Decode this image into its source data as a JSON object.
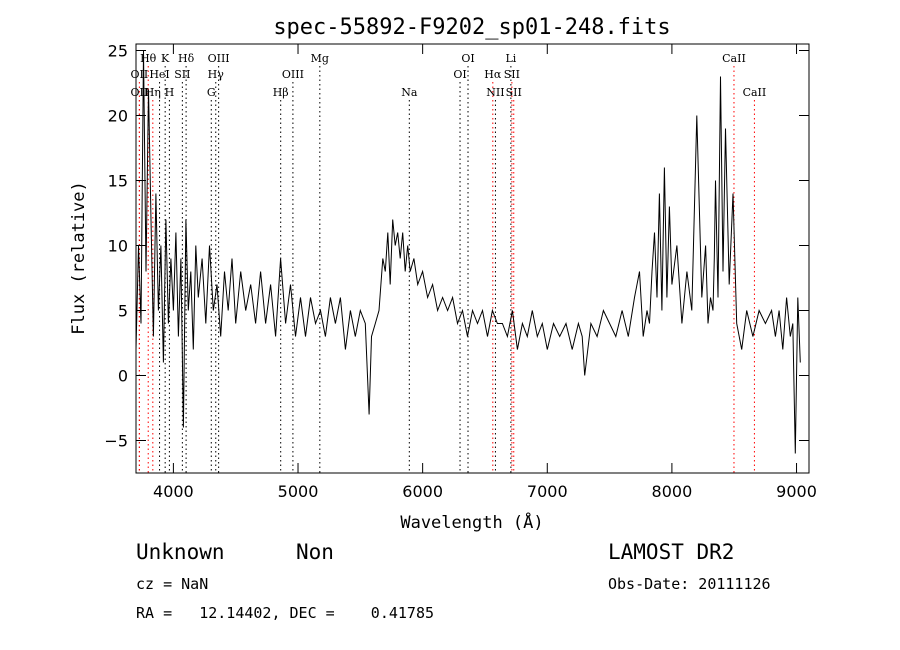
{
  "chart_data": {
    "type": "line",
    "title": "spec-55892-F9202_sp01-248.fits",
    "xlabel": "Wavelength (Å)",
    "ylabel": "Flux (relative)",
    "xlim": [
      3700,
      9100
    ],
    "ylim": [
      -7.5,
      25.5
    ],
    "xticks": [
      4000,
      5000,
      6000,
      7000,
      8000,
      9000
    ],
    "yticks": [
      -5,
      0,
      5,
      10,
      15,
      20,
      25
    ],
    "grid": false,
    "series": [
      {
        "name": "spectrum",
        "x": [
          3700,
          3720,
          3740,
          3760,
          3780,
          3800,
          3820,
          3840,
          3860,
          3880,
          3900,
          3920,
          3940,
          3960,
          3980,
          4000,
          4020,
          4040,
          4060,
          4080,
          4100,
          4120,
          4140,
          4160,
          4180,
          4200,
          4230,
          4260,
          4290,
          4320,
          4350,
          4380,
          4410,
          4440,
          4470,
          4500,
          4540,
          4580,
          4620,
          4660,
          4700,
          4740,
          4780,
          4820,
          4860,
          4900,
          4940,
          4980,
          5020,
          5060,
          5100,
          5140,
          5180,
          5220,
          5260,
          5300,
          5340,
          5380,
          5420,
          5460,
          5500,
          5540,
          5570,
          5590,
          5620,
          5650,
          5680,
          5700,
          5720,
          5740,
          5760,
          5780,
          5800,
          5820,
          5840,
          5860,
          5880,
          5900,
          5930,
          5960,
          6000,
          6040,
          6080,
          6120,
          6160,
          6200,
          6240,
          6280,
          6320,
          6360,
          6400,
          6440,
          6480,
          6520,
          6560,
          6600,
          6640,
          6680,
          6720,
          6760,
          6800,
          6840,
          6880,
          6920,
          6960,
          7000,
          7050,
          7100,
          7150,
          7200,
          7250,
          7280,
          7300,
          7350,
          7400,
          7450,
          7500,
          7550,
          7600,
          7650,
          7700,
          7740,
          7770,
          7800,
          7820,
          7840,
          7860,
          7880,
          7900,
          7920,
          7940,
          7960,
          7980,
          8000,
          8040,
          8080,
          8120,
          8160,
          8200,
          8240,
          8270,
          8290,
          8310,
          8330,
          8340,
          8350,
          8370,
          8390,
          8410,
          8430,
          8460,
          8490,
          8520,
          8560,
          8600,
          8650,
          8700,
          8750,
          8800,
          8830,
          8860,
          8890,
          8920,
          8950,
          8970,
          8990,
          9010,
          9030
        ],
        "y": [
          2,
          10,
          4,
          25,
          8,
          22,
          12,
          3,
          14,
          5,
          10,
          1,
          12,
          4,
          9,
          5,
          11,
          3,
          9,
          -4,
          12,
          5,
          8,
          2,
          10,
          6,
          9,
          4,
          10,
          5,
          7,
          3,
          8,
          5,
          9,
          4,
          8,
          5,
          7,
          4,
          8,
          4,
          7,
          3,
          9,
          4,
          7,
          3,
          6,
          3,
          6,
          4,
          5,
          3,
          6,
          4,
          6,
          2,
          5,
          3,
          5,
          4,
          -3,
          3,
          4,
          5,
          9,
          8,
          11,
          7,
          12,
          10,
          11,
          9,
          11,
          8,
          10,
          8,
          9,
          7,
          8,
          6,
          7,
          5,
          6,
          5,
          6,
          4,
          5,
          3,
          5,
          4,
          5,
          3,
          5,
          4,
          4,
          3,
          5,
          2,
          4,
          3,
          5,
          3,
          4,
          2,
          4,
          3,
          4,
          2,
          4,
          3,
          0,
          4,
          3,
          5,
          4,
          3,
          5,
          3,
          6,
          8,
          3,
          5,
          4,
          8,
          11,
          6,
          14,
          5,
          16,
          6,
          13,
          7,
          10,
          4,
          8,
          5,
          20,
          6,
          10,
          4,
          6,
          5,
          9,
          15,
          6,
          23,
          8,
          19,
          7,
          14,
          4,
          2,
          5,
          3,
          5,
          4,
          5,
          3,
          5,
          2,
          6,
          3,
          4,
          -6,
          6,
          1
        ]
      }
    ],
    "lines": [
      {
        "label": "Hθ",
        "wl": 3798,
        "row": 1,
        "color": "#ff0000"
      },
      {
        "label": "K",
        "wl": 3934,
        "row": 1,
        "color": "#000000"
      },
      {
        "label": "Hδ",
        "wl": 4102,
        "row": 1,
        "color": "#000000"
      },
      {
        "label": "OIII",
        "wl": 4363,
        "row": 1,
        "color": "#000000"
      },
      {
        "label": "Mg",
        "wl": 5175,
        "row": 1,
        "color": "#000000"
      },
      {
        "label": "OI",
        "wl": 6364,
        "row": 1,
        "color": "#000000"
      },
      {
        "label": "Li",
        "wl": 6708,
        "row": 1,
        "color": "#000000"
      },
      {
        "label": "CaII",
        "wl": 8498,
        "row": 1,
        "color": "#ff0000"
      },
      {
        "label": "OII",
        "wl": 3727,
        "row": 2,
        "color": "#ff0000"
      },
      {
        "label": "HeI",
        "wl": 3889,
        "row": 2,
        "color": "#000000"
      },
      {
        "label": "SII",
        "wl": 4072,
        "row": 2,
        "color": "#000000"
      },
      {
        "label": "Hγ",
        "wl": 4340,
        "row": 2,
        "color": "#000000"
      },
      {
        "label": "OIII",
        "wl": 4959,
        "row": 2,
        "color": "#000000"
      },
      {
        "label": "OI",
        "wl": 6300,
        "row": 2,
        "color": "#000000"
      },
      {
        "label": "Hα",
        "wl": 6563,
        "row": 2,
        "color": "#ff0000"
      },
      {
        "label": "SII",
        "wl": 6716,
        "row": 2,
        "color": "#ff0000"
      },
      {
        "label": "OII",
        "wl": 3727,
        "row": 3,
        "color": "#ff0000"
      },
      {
        "label": "Hη",
        "wl": 3835,
        "row": 3,
        "color": "#ff0000"
      },
      {
        "label": "H",
        "wl": 3968,
        "row": 3,
        "color": "#000000"
      },
      {
        "label": "G",
        "wl": 4304,
        "row": 3,
        "color": "#000000"
      },
      {
        "label": "Hβ",
        "wl": 4861,
        "row": 3,
        "color": "#000000"
      },
      {
        "label": "Na",
        "wl": 5893,
        "row": 3,
        "color": "#000000"
      },
      {
        "label": "NII",
        "wl": 6584,
        "row": 3,
        "color": "#000000"
      },
      {
        "label": "SII",
        "wl": 6731,
        "row": 3,
        "color": "#ff0000"
      },
      {
        "label": "CaII",
        "wl": 8662,
        "row": 3,
        "color": "#ff0000"
      }
    ]
  },
  "info": {
    "classification": "Unknown",
    "subclass": "Non",
    "cz": "cz = NaN",
    "coords": "RA =   12.14402, DEC =    0.41785",
    "survey": "LAMOST DR2",
    "obs_date": "Obs-Date: 20111126"
  }
}
